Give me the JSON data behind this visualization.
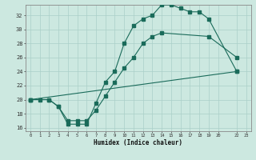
{
  "xlabel": "Humidex (Indice chaleur)",
  "bg_color": "#cce8e0",
  "grid_color": "#aacfc8",
  "line_color": "#1a6b5a",
  "xlim": [
    -0.5,
    23.5
  ],
  "ylim": [
    15.5,
    33.5
  ],
  "xticks": [
    0,
    1,
    2,
    3,
    4,
    5,
    6,
    7,
    8,
    9,
    10,
    11,
    12,
    13,
    14,
    15,
    16,
    17,
    18,
    19,
    20,
    22,
    23
  ],
  "xtick_labels": [
    "0",
    "1",
    "2",
    "3",
    "4",
    "5",
    "6",
    "7",
    "8",
    "9",
    "10",
    "11",
    "12",
    "13",
    "14",
    "15",
    "16",
    "17",
    "18",
    "19",
    "20",
    "22",
    "23"
  ],
  "yticks": [
    16,
    18,
    20,
    22,
    24,
    26,
    28,
    30,
    32
  ],
  "line1_x": [
    0,
    1,
    2,
    3,
    4,
    5,
    6,
    7,
    8,
    9,
    10,
    11,
    12,
    13,
    14,
    15,
    16,
    17,
    18,
    19,
    22
  ],
  "line1_y": [
    20,
    20,
    20,
    19,
    16.5,
    16.5,
    16.5,
    19.5,
    22.5,
    24,
    28,
    30.5,
    31.5,
    32,
    33.5,
    33.5,
    33,
    32.5,
    32.5,
    31.5,
    24
  ],
  "line2_x": [
    0,
    2,
    3,
    4,
    5,
    6,
    7,
    8,
    9,
    10,
    11,
    12,
    13,
    14,
    19,
    22
  ],
  "line2_y": [
    20,
    20,
    19,
    17,
    17,
    17,
    18.5,
    20.5,
    22.5,
    24.5,
    26,
    28,
    29,
    29.5,
    29,
    26
  ],
  "line3_x": [
    0,
    22
  ],
  "line3_y": [
    20,
    24
  ]
}
